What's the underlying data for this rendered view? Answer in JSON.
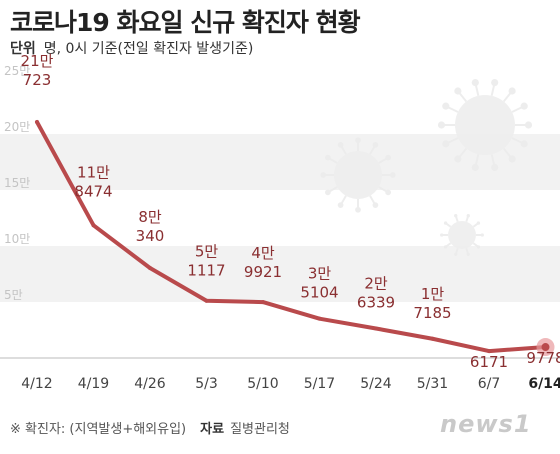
{
  "title": "코로나19 화요일 신규 확진자 현황",
  "unit_label": "단위",
  "unit_text": "명, 0시 기준(전일 확진자 발생기준)",
  "footnote": "※ 확진자: (지역발생+해외유입)",
  "source_label": "자료",
  "source_text": "질병관리청",
  "logo_text": "news1",
  "colors": {
    "line": "#b94a4c",
    "label": "#8a2f31",
    "band": "#f2f2f2",
    "axis": "#bbbbbb",
    "highlight": "#e89a9c"
  },
  "chart_data": {
    "type": "line",
    "title": "코로나19 화요일 신규 확진자 현황",
    "categories": [
      "4/12",
      "4/19",
      "4/26",
      "5/3",
      "5/10",
      "5/17",
      "5/24",
      "5/31",
      "6/7",
      "6/14"
    ],
    "series": [
      {
        "values": [
          210723,
          118474,
          80340,
          51117,
          49921,
          35104,
          26339,
          17185,
          6171,
          9778
        ]
      }
    ],
    "point_labels": [
      [
        "21만",
        "723"
      ],
      [
        "11만",
        "8474"
      ],
      [
        "8만",
        "340"
      ],
      [
        "5만",
        "1117"
      ],
      [
        "4만",
        "9921"
      ],
      [
        "3만",
        "5104"
      ],
      [
        "2만",
        "6339"
      ],
      [
        "1만",
        "7185"
      ],
      [
        "",
        "6171"
      ],
      [
        "",
        "9778"
      ]
    ],
    "y_ticks": [
      0,
      50000,
      100000,
      150000,
      200000,
      250000
    ],
    "y_tick_labels": [
      "",
      "5만",
      "10만",
      "15만",
      "20만",
      "25만"
    ],
    "ylim": [
      0,
      250000
    ],
    "grid": "alternating bands",
    "highlight_last": true
  }
}
